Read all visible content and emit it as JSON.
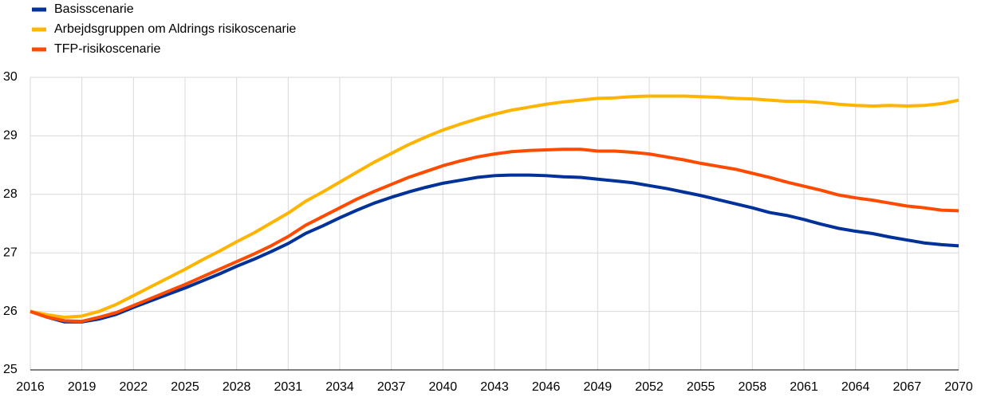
{
  "chart_data": {
    "type": "line",
    "x": [
      2016,
      2017,
      2018,
      2019,
      2020,
      2021,
      2022,
      2023,
      2024,
      2025,
      2026,
      2027,
      2028,
      2029,
      2030,
      2031,
      2032,
      2033,
      2034,
      2035,
      2036,
      2037,
      2038,
      2039,
      2040,
      2041,
      2042,
      2043,
      2044,
      2045,
      2046,
      2047,
      2048,
      2049,
      2050,
      2051,
      2052,
      2053,
      2054,
      2055,
      2056,
      2057,
      2058,
      2059,
      2060,
      2061,
      2062,
      2063,
      2064,
      2065,
      2066,
      2067,
      2068,
      2069,
      2070
    ],
    "series": [
      {
        "name": "Basisscenarie",
        "color": "#003299",
        "values": [
          26.0,
          25.9,
          25.82,
          25.82,
          25.87,
          25.95,
          26.07,
          26.18,
          26.29,
          26.4,
          26.52,
          26.64,
          26.77,
          26.89,
          27.02,
          27.16,
          27.33,
          27.46,
          27.6,
          27.73,
          27.85,
          27.95,
          28.04,
          28.12,
          28.19,
          28.24,
          28.29,
          28.32,
          28.33,
          28.33,
          28.32,
          28.3,
          28.29,
          28.26,
          28.23,
          28.2,
          28.15,
          28.1,
          28.04,
          27.98,
          27.91,
          27.84,
          27.77,
          27.69,
          27.64,
          27.57,
          27.49,
          27.42,
          27.37,
          27.33,
          27.27,
          27.22,
          27.17,
          27.14,
          27.12
        ]
      },
      {
        "name": "Arbejdsgruppen om Aldrings risikoscenarie",
        "color": "#ffb400",
        "values": [
          26.0,
          25.94,
          25.9,
          25.92,
          26.0,
          26.12,
          26.27,
          26.42,
          26.57,
          26.72,
          26.88,
          27.03,
          27.19,
          27.34,
          27.51,
          27.68,
          27.88,
          28.04,
          28.21,
          28.38,
          28.55,
          28.7,
          28.85,
          28.98,
          29.1,
          29.2,
          29.29,
          29.37,
          29.44,
          29.49,
          29.54,
          29.58,
          29.61,
          29.64,
          29.65,
          29.67,
          29.68,
          29.68,
          29.68,
          29.67,
          29.66,
          29.64,
          29.63,
          29.61,
          29.59,
          29.59,
          29.57,
          29.54,
          29.52,
          29.51,
          29.52,
          29.51,
          29.52,
          29.55,
          29.61
        ]
      },
      {
        "name": "TFP-risikoscenarie",
        "color": "#ff4b00",
        "values": [
          26.0,
          25.9,
          25.84,
          25.83,
          25.9,
          25.98,
          26.1,
          26.22,
          26.34,
          26.46,
          26.59,
          26.72,
          26.85,
          26.98,
          27.12,
          27.28,
          27.47,
          27.62,
          27.77,
          27.92,
          28.05,
          28.17,
          28.29,
          28.39,
          28.49,
          28.57,
          28.64,
          28.69,
          28.73,
          28.75,
          28.76,
          28.77,
          28.77,
          28.74,
          28.74,
          28.72,
          28.69,
          28.64,
          28.59,
          28.53,
          28.48,
          28.43,
          28.36,
          28.29,
          28.21,
          28.14,
          28.07,
          27.99,
          27.94,
          27.9,
          27.85,
          27.8,
          27.77,
          27.73,
          27.72
        ]
      }
    ],
    "xlim": [
      2016,
      2070
    ],
    "xticks": [
      2016,
      2019,
      2022,
      2025,
      2028,
      2031,
      2034,
      2037,
      2040,
      2043,
      2046,
      2049,
      2052,
      2055,
      2058,
      2061,
      2064,
      2067,
      2070
    ],
    "ylim": [
      25,
      30
    ],
    "yticks": [
      25,
      26,
      27,
      28,
      29,
      30
    ],
    "grid": true,
    "legend": "top-left"
  }
}
